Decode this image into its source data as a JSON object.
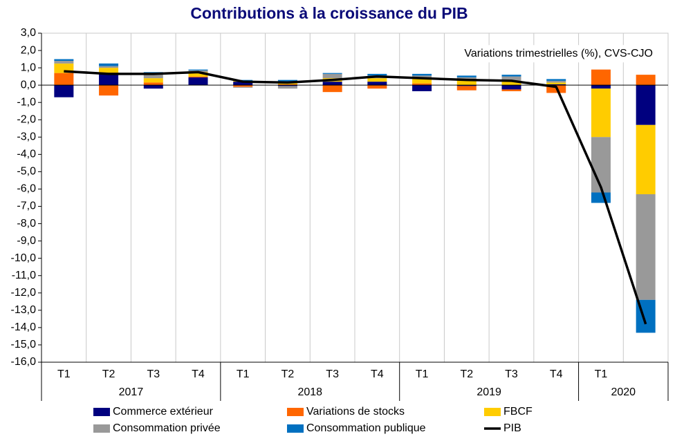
{
  "chart_data": {
    "type": "bar",
    "stacked": true,
    "title": "Contributions à la croissance du PIB",
    "annotation": "Variations trimestrielles (%), CVS-CJO",
    "categories": [
      "T1",
      "T2",
      "T3",
      "T4",
      "T1",
      "T2",
      "T3",
      "T4",
      "T1",
      "T2",
      "T3",
      "T4",
      "T1",
      null
    ],
    "category_groups": [
      {
        "label": "2017",
        "size": 4
      },
      {
        "label": "2018",
        "size": 4
      },
      {
        "label": "2019",
        "size": 4
      },
      {
        "label": "2020",
        "size": 2
      }
    ],
    "series": [
      {
        "name": "Commerce extérieur",
        "color": "#00007f",
        "values": [
          -0.7,
          0.7,
          -0.2,
          0.45,
          0.2,
          -0.05,
          0.2,
          0.2,
          -0.35,
          -0.05,
          -0.25,
          0.05,
          -0.2,
          -2.3
        ]
      },
      {
        "name": "Variations de stocks",
        "color": "#ff6600",
        "values": [
          0.7,
          -0.6,
          0.15,
          0.05,
          -0.1,
          0.05,
          -0.4,
          -0.2,
          0.1,
          -0.25,
          -0.1,
          -0.45,
          0.9,
          0.6
        ]
      },
      {
        "name": "FBCF",
        "color": "#ffcc00",
        "values": [
          0.55,
          0.3,
          0.25,
          0.25,
          0.05,
          0.15,
          0.2,
          0.2,
          0.25,
          0.3,
          0.2,
          0.1,
          -2.8,
          -4.0
        ]
      },
      {
        "name": "Consommation privée",
        "color": "#999999",
        "values": [
          0.15,
          0.1,
          0.25,
          0.1,
          -0.05,
          -0.15,
          0.25,
          0.15,
          0.2,
          0.15,
          0.3,
          0.1,
          -3.2,
          -6.1
        ]
      },
      {
        "name": "Consommation publique",
        "color": "#0070c0",
        "values": [
          0.1,
          0.15,
          0.1,
          0.05,
          0.05,
          0.1,
          0.05,
          0.1,
          0.1,
          0.1,
          0.1,
          0.1,
          -0.6,
          -1.9
        ]
      },
      {
        "name": "PIB",
        "color": "#000000",
        "type": "line",
        "values": [
          0.8,
          0.65,
          0.65,
          0.75,
          0.2,
          0.15,
          0.3,
          0.5,
          0.4,
          0.3,
          0.25,
          -0.1,
          -5.9,
          -13.8
        ]
      }
    ],
    "ylim": [
      -16,
      3
    ],
    "yticks": [
      {
        "value": 3,
        "label": "3,0"
      },
      {
        "value": 2,
        "label": "2,0"
      },
      {
        "value": 1,
        "label": "1,0"
      },
      {
        "value": 0,
        "label": "0,0"
      },
      {
        "value": -1,
        "label": "-1,0"
      },
      {
        "value": -2,
        "label": "-2,0"
      },
      {
        "value": -3,
        "label": "-3,0"
      },
      {
        "value": -4,
        "label": "-4,0"
      },
      {
        "value": -5,
        "label": "-5,0"
      },
      {
        "value": -6,
        "label": "-6,0"
      },
      {
        "value": -7,
        "label": "-7,0"
      },
      {
        "value": -8,
        "label": "-8,0"
      },
      {
        "value": -9,
        "label": "-9,0"
      },
      {
        "value": -10,
        "label": "-10,0"
      },
      {
        "value": -11,
        "label": "-11,0"
      },
      {
        "value": -12,
        "label": "-12,0"
      },
      {
        "value": -13,
        "label": "-13,0"
      },
      {
        "value": -14,
        "label": "-14,0"
      },
      {
        "value": -15,
        "label": "-15,0"
      },
      {
        "value": -16,
        "label": "-16,0"
      }
    ],
    "grid": true
  }
}
